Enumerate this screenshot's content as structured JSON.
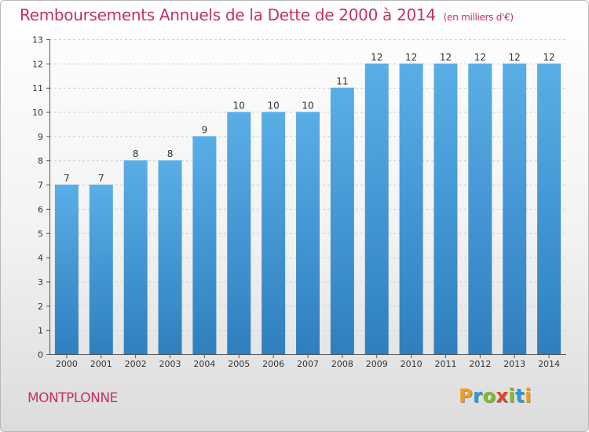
{
  "title": "Remboursements Annuels de la Dette de 2000 à 2014",
  "subtitle": "(en milliers d'€)",
  "commune": "MONTPLONNE",
  "logo": {
    "text": "Proxiti",
    "letters": [
      {
        "char": "P",
        "color": "#f0a020"
      },
      {
        "char": "r",
        "color": "#2a9ad8"
      },
      {
        "char": "o",
        "color": "#7dbb2d"
      },
      {
        "char": "x",
        "color": "#e8412b"
      },
      {
        "char": "i",
        "color": "#7dbb2d"
      },
      {
        "char": "t",
        "color": "#2a9ad8"
      },
      {
        "char": "i",
        "color": "#f0a020"
      }
    ]
  },
  "chart_data": {
    "type": "bar",
    "title": "Remboursements Annuels de la Dette de 2000 à 2014",
    "subtitle": "(en milliers d'€)",
    "categories": [
      "2000",
      "2001",
      "2002",
      "2003",
      "2004",
      "2005",
      "2006",
      "2007",
      "2008",
      "2009",
      "2010",
      "2011",
      "2012",
      "2013",
      "2014"
    ],
    "values": [
      7,
      7,
      8,
      8,
      9,
      10,
      10,
      10,
      11,
      12,
      12,
      12,
      12,
      12,
      12
    ],
    "xlabel": "",
    "ylabel": "",
    "ylim": [
      0,
      13
    ],
    "yticks": [
      0,
      1,
      2,
      3,
      4,
      5,
      6,
      7,
      8,
      9,
      10,
      11,
      12,
      13
    ],
    "grid": true,
    "bar_color": "#4c9fdc",
    "title_color": "#c4306a"
  }
}
